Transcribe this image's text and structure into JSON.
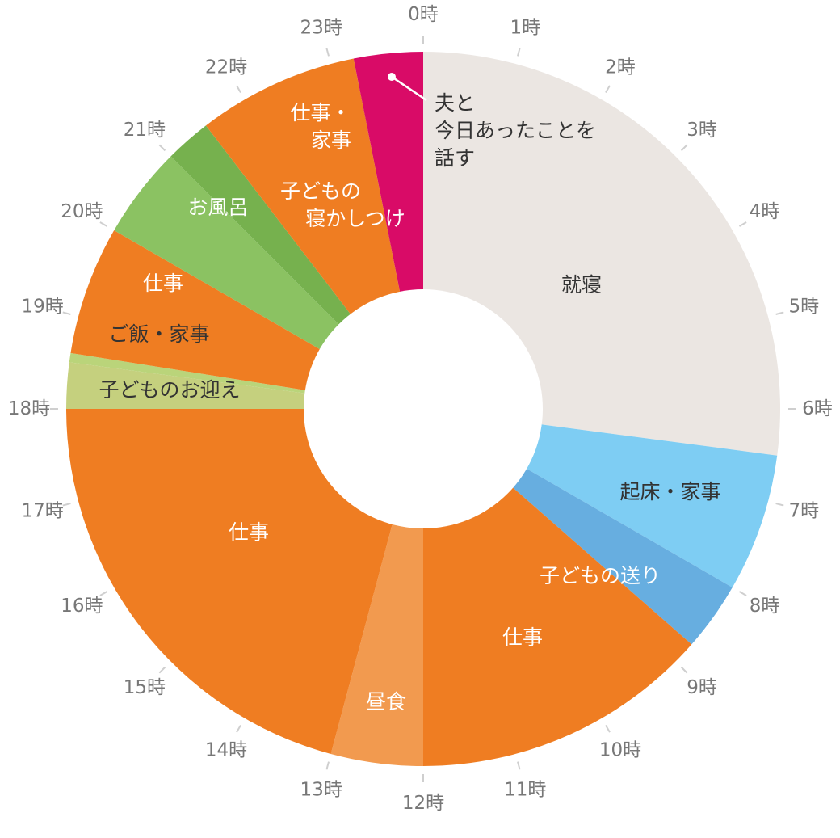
{
  "chart_data": {
    "type": "pie",
    "variant": "donut",
    "start_angle_label": "0時",
    "hour_labels": [
      "0時",
      "1時",
      "2時",
      "3時",
      "4時",
      "5時",
      "6時",
      "7時",
      "8時",
      "9時",
      "10時",
      "11時",
      "12時",
      "13時",
      "14時",
      "15時",
      "16時",
      "17時",
      "18時",
      "19時",
      "20時",
      "21時",
      "22時",
      "23時"
    ],
    "slices": [
      {
        "label_lines": [
          "就寝"
        ],
        "start": 0,
        "end": 6.5,
        "color": "#ebe6e2",
        "text_color": "#333333"
      },
      {
        "label_lines": [
          "起床・家事"
        ],
        "start": 6.5,
        "end": 8.0,
        "color": "#7ecdf3",
        "text_color": "#333333"
      },
      {
        "label_lines": [
          "子どもの送り"
        ],
        "start": 8.0,
        "end": 8.75,
        "color": "#67aee0",
        "text_color": "#ffffff"
      },
      {
        "label_lines": [
          "仕事"
        ],
        "start": 8.75,
        "end": 12.0,
        "color": "#ef7d22",
        "text_color": "#ffffff"
      },
      {
        "label_lines": [
          "昼食"
        ],
        "start": 12.0,
        "end": 13.0,
        "color": "#f29a4f",
        "text_color": "#ffffff"
      },
      {
        "label_lines": [
          "仕事"
        ],
        "start": 13.0,
        "end": 18.0,
        "color": "#ef7d22",
        "text_color": "#ffffff"
      },
      {
        "label_lines": [
          "子どものお迎え"
        ],
        "start": 18.0,
        "end": 18.5,
        "color": "#c5d07e",
        "text_color": "#333333"
      },
      {
        "label_lines": [
          "ご飯・家事"
        ],
        "start": 18.5,
        "end": 18.6,
        "color": "#bad47a",
        "text_color": "#333333"
      },
      {
        "label_lines": [
          "仕事"
        ],
        "start": 18.6,
        "end": 20.0,
        "color": "#ef7d22",
        "text_color": "#ffffff"
      },
      {
        "label_lines": [
          "お風呂"
        ],
        "start": 20.0,
        "end": 21.0,
        "color": "#8bc262",
        "text_color": "#ffffff"
      },
      {
        "label_lines": [
          "子どもの",
          "寝かしつけ"
        ],
        "start": 21.0,
        "end": 21.5,
        "color": "#76b14e",
        "text_color": "#ffffff"
      },
      {
        "label_lines": [
          "仕事・",
          "家事"
        ],
        "start": 21.5,
        "end": 23.25,
        "color": "#ef7d22",
        "text_color": "#ffffff"
      },
      {
        "label_lines": [
          "夫と",
          "今日あったことを",
          "話す"
        ],
        "start": 23.25,
        "end": 24.0,
        "color": "#d90b67",
        "text_color": "#333333"
      }
    ]
  }
}
